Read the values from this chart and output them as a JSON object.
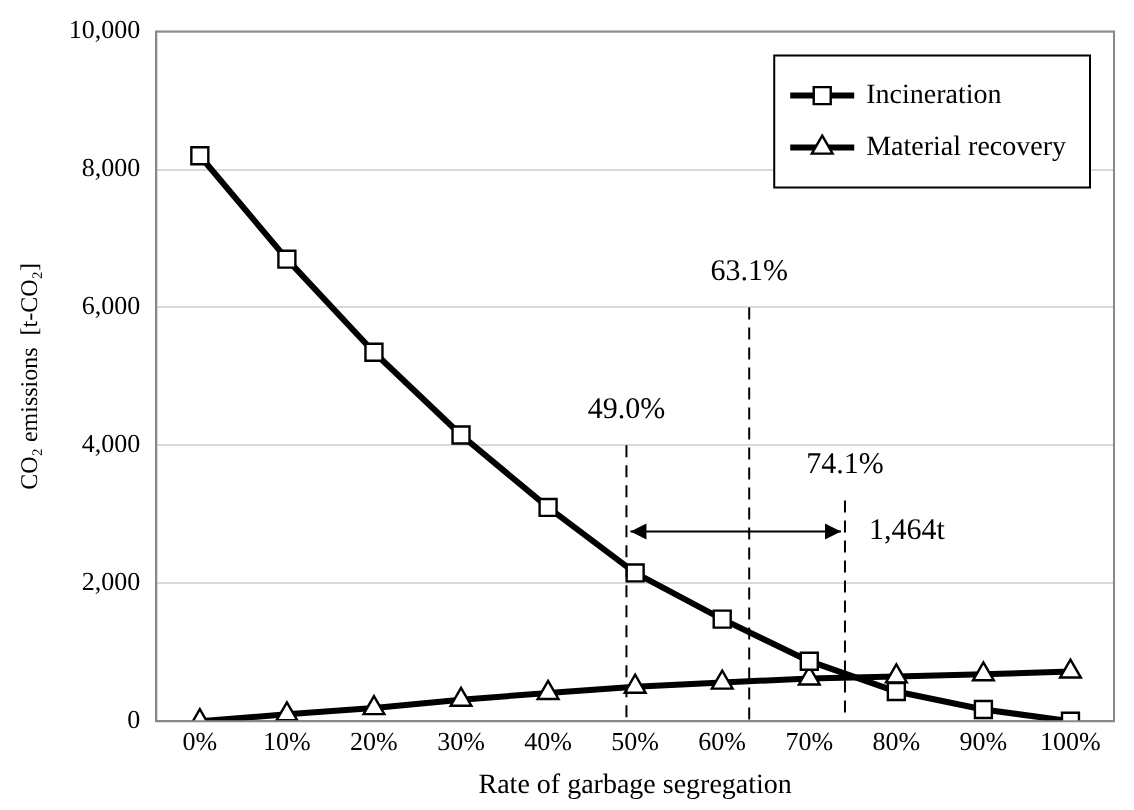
{
  "chart_data": {
    "type": "line",
    "xlabel": "Rate of garbage segregation",
    "ylabel": "CO₂ emissions  [t-CO₂]",
    "x": [
      0,
      10,
      20,
      30,
      40,
      50,
      60,
      70,
      80,
      90,
      100
    ],
    "xlim": [
      -5,
      105
    ],
    "xticks": [
      {
        "value": 0,
        "label": "0%"
      },
      {
        "value": 10,
        "label": "10%"
      },
      {
        "value": 20,
        "label": "20%"
      },
      {
        "value": 30,
        "label": "30%"
      },
      {
        "value": 40,
        "label": "40%"
      },
      {
        "value": 50,
        "label": "50%"
      },
      {
        "value": 60,
        "label": "60%"
      },
      {
        "value": 70,
        "label": "70%"
      },
      {
        "value": 80,
        "label": "80%"
      },
      {
        "value": 90,
        "label": "90%"
      },
      {
        "value": 100,
        "label": "100%"
      }
    ],
    "ylim": [
      0,
      10000
    ],
    "yticks": [
      0,
      {
        "value": 2000,
        "label": "2,000"
      },
      {
        "value": 4000,
        "label": "4,000"
      },
      {
        "value": 6000,
        "label": "6,000"
      },
      {
        "value": 8000,
        "label": "8,000"
      },
      {
        "value": 10000,
        "label": "10,000"
      }
    ],
    "series": [
      {
        "name": "Incineration",
        "color": "#000000",
        "marker": "square",
        "values": [
          8200,
          6700,
          5350,
          4150,
          3100,
          2150,
          1480,
          870,
          430,
          170,
          0
        ]
      },
      {
        "name": "Material recovery",
        "color": "#000000",
        "marker": "triangle",
        "values": [
          0,
          100,
          190,
          310,
          410,
          500,
          560,
          620,
          650,
          680,
          720
        ]
      }
    ],
    "ref_lines": [
      {
        "axis": "x",
        "value": 49.0,
        "label": "49.0%",
        "line_style": "dashed",
        "color": "#000000"
      },
      {
        "axis": "x",
        "value": 63.1,
        "label": "63.1%",
        "line_style": "dashed",
        "color": "#000000"
      },
      {
        "axis": "x",
        "value": 74.1,
        "label": "74.1%",
        "line_style": "dashed",
        "color": "#000000"
      }
    ],
    "annotations": [
      {
        "text": "1,464t",
        "x": 74.1,
        "y": 2750
      }
    ],
    "grid": "y",
    "legend": "top right",
    "line_style": "solid"
  }
}
